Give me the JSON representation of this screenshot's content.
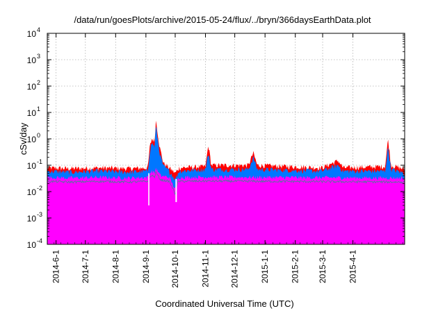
{
  "chart_data": {
    "type": "area",
    "title": "/data/run/goesPlots/archive/2015-05-24/flux/../bryn/366daysEarthData.plot",
    "xlabel": "Coordinated Universal Time (UTC)",
    "ylabel": "cSv/day",
    "y_scale": "log",
    "ylim": [
      0.0001,
      10000
    ],
    "y_ticks": [
      {
        "base": "10",
        "exp": "-4",
        "value": 0.0001
      },
      {
        "base": "10",
        "exp": "-3",
        "value": 0.001
      },
      {
        "base": "10",
        "exp": "-2",
        "value": 0.01
      },
      {
        "base": "10",
        "exp": "-1",
        "value": 0.1
      },
      {
        "base": "10",
        "exp": "0",
        "value": 1
      },
      {
        "base": "10",
        "exp": "1",
        "value": 10
      },
      {
        "base": "10",
        "exp": "2",
        "value": 100
      },
      {
        "base": "10",
        "exp": "3",
        "value": 1000
      },
      {
        "base": "10",
        "exp": "4",
        "value": 10000
      }
    ],
    "xlim": [
      "2014-05-23",
      "2015-05-24"
    ],
    "x_ticks": [
      {
        "label": "2014-6-1",
        "date": "2014-06-01"
      },
      {
        "label": "2014-7-1",
        "date": "2014-07-01"
      },
      {
        "label": "2014-8-1",
        "date": "2014-08-01"
      },
      {
        "label": "2014-9-1",
        "date": "2014-09-01"
      },
      {
        "label": "2014-10-1",
        "date": "2014-10-01"
      },
      {
        "label": "2014-11-1",
        "date": "2014-11-01"
      },
      {
        "label": "2014-12-1",
        "date": "2014-12-01"
      },
      {
        "label": "2015-1-1",
        "date": "2015-01-01"
      },
      {
        "label": "2015-2-1",
        "date": "2015-02-01"
      },
      {
        "label": "2015-3-1",
        "date": "2015-03-01"
      },
      {
        "label": "2015-4-1",
        "date": "2015-04-01"
      }
    ],
    "grid": true,
    "series": [
      {
        "color": "#ff0000",
        "points": [
          {
            "x": "2014-05-23",
            "y": 0.08
          },
          {
            "x": "2014-06-15",
            "y": 0.075
          },
          {
            "x": "2014-07-15",
            "y": 0.08
          },
          {
            "x": "2014-08-15",
            "y": 0.075
          },
          {
            "x": "2014-09-03",
            "y": 0.08
          },
          {
            "x": "2014-09-05",
            "y": 0.5
          },
          {
            "x": "2014-09-07",
            "y": 1.0
          },
          {
            "x": "2014-09-10",
            "y": 0.8
          },
          {
            "x": "2014-09-11",
            "y": 5.0
          },
          {
            "x": "2014-09-12",
            "y": 3.5
          },
          {
            "x": "2014-09-15",
            "y": 0.5
          },
          {
            "x": "2014-09-19",
            "y": 0.12
          },
          {
            "x": "2014-09-25",
            "y": 0.08
          },
          {
            "x": "2014-10-01",
            "y": 0.05
          },
          {
            "x": "2014-10-05",
            "y": 0.08
          },
          {
            "x": "2014-11-01",
            "y": 0.09
          },
          {
            "x": "2014-11-04",
            "y": 0.6
          },
          {
            "x": "2014-11-07",
            "y": 0.1
          },
          {
            "x": "2014-12-15",
            "y": 0.1
          },
          {
            "x": "2014-12-20",
            "y": 0.3
          },
          {
            "x": "2014-12-24",
            "y": 0.1
          },
          {
            "x": "2015-02-28",
            "y": 0.08
          },
          {
            "x": "2015-03-17",
            "y": 0.15
          },
          {
            "x": "2015-03-22",
            "y": 0.08
          },
          {
            "x": "2015-05-04",
            "y": 0.09
          },
          {
            "x": "2015-05-07",
            "y": 1.0
          },
          {
            "x": "2015-05-10",
            "y": 0.1
          },
          {
            "x": "2015-05-24",
            "y": 0.07
          }
        ]
      },
      {
        "color": "#0077ff",
        "points": [
          {
            "x": "2014-05-23",
            "y": 0.06
          },
          {
            "x": "2014-06-15",
            "y": 0.055
          },
          {
            "x": "2014-07-15",
            "y": 0.06
          },
          {
            "x": "2014-08-15",
            "y": 0.055
          },
          {
            "x": "2014-09-03",
            "y": 0.06
          },
          {
            "x": "2014-09-05",
            "y": 0.35
          },
          {
            "x": "2014-09-07",
            "y": 0.7
          },
          {
            "x": "2014-09-10",
            "y": 0.5
          },
          {
            "x": "2014-09-11",
            "y": 3.0
          },
          {
            "x": "2014-09-12",
            "y": 2.0
          },
          {
            "x": "2014-09-15",
            "y": 0.3
          },
          {
            "x": "2014-09-19",
            "y": 0.09
          },
          {
            "x": "2014-09-25",
            "y": 0.06
          },
          {
            "x": "2014-10-01",
            "y": 0.03
          },
          {
            "x": "2014-10-05",
            "y": 0.06
          },
          {
            "x": "2014-11-01",
            "y": 0.07
          },
          {
            "x": "2014-11-04",
            "y": 0.3
          },
          {
            "x": "2014-11-07",
            "y": 0.07
          },
          {
            "x": "2014-12-15",
            "y": 0.07
          },
          {
            "x": "2014-12-20",
            "y": 0.2
          },
          {
            "x": "2014-12-24",
            "y": 0.07
          },
          {
            "x": "2015-02-28",
            "y": 0.06
          },
          {
            "x": "2015-03-17",
            "y": 0.1
          },
          {
            "x": "2015-03-22",
            "y": 0.06
          },
          {
            "x": "2015-05-04",
            "y": 0.06
          },
          {
            "x": "2015-05-07",
            "y": 0.5
          },
          {
            "x": "2015-05-10",
            "y": 0.07
          },
          {
            "x": "2015-05-24",
            "y": 0.05
          }
        ]
      },
      {
        "color": "#ff00ff",
        "points": [
          {
            "x": "2014-05-23",
            "y": 0.035
          },
          {
            "x": "2014-06-15",
            "y": 0.033
          },
          {
            "x": "2014-07-15",
            "y": 0.035
          },
          {
            "x": "2014-08-15",
            "y": 0.033
          },
          {
            "x": "2014-09-03",
            "y": 0.035
          },
          {
            "x": "2014-09-05",
            "y": 0.05
          },
          {
            "x": "2014-09-07",
            "y": 0.06
          },
          {
            "x": "2014-09-10",
            "y": 0.05
          },
          {
            "x": "2014-09-11",
            "y": 0.08
          },
          {
            "x": "2014-09-13",
            "y": 0.06
          },
          {
            "x": "2014-09-16",
            "y": 0.04
          },
          {
            "x": "2014-09-25",
            "y": 0.035
          },
          {
            "x": "2014-10-01",
            "y": 0.012
          },
          {
            "x": "2014-10-04",
            "y": 0.035
          },
          {
            "x": "2014-11-01",
            "y": 0.036
          },
          {
            "x": "2015-01-01",
            "y": 0.035
          },
          {
            "x": "2015-05-24",
            "y": 0.033
          }
        ]
      }
    ]
  }
}
